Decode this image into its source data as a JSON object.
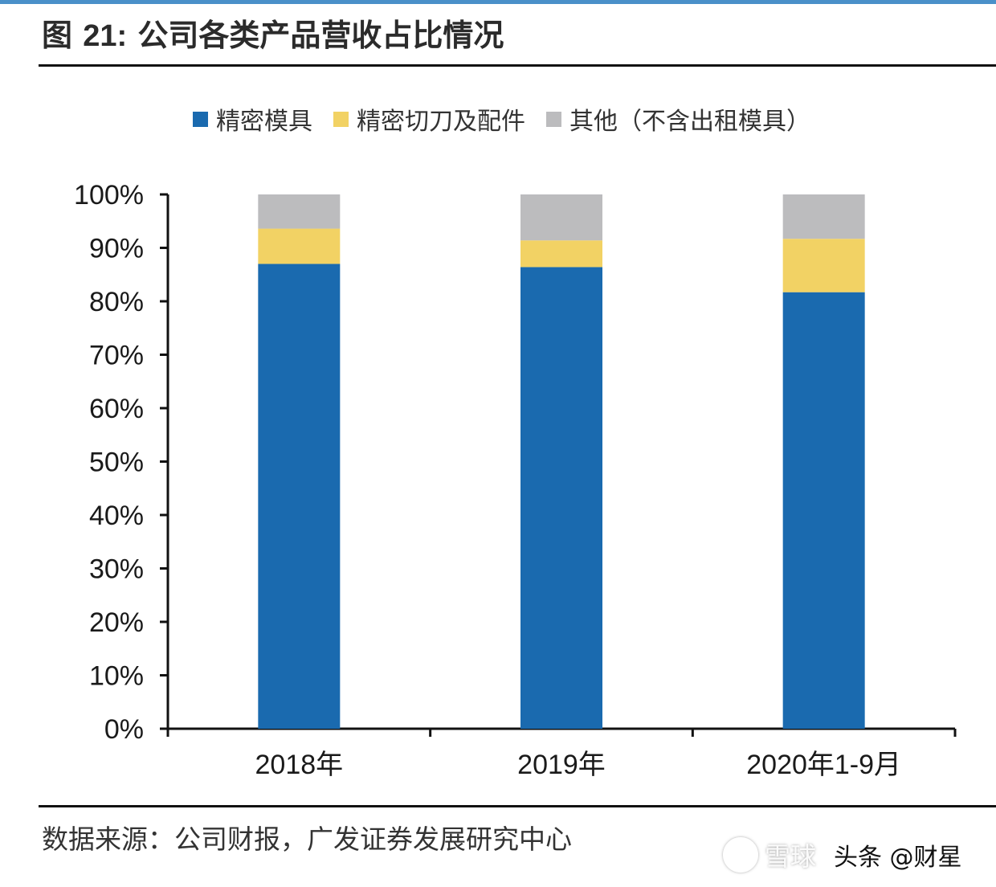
{
  "figure": {
    "label": "图",
    "number": "21:",
    "title": "公司各类产品营收占比情况"
  },
  "source": "数据来源：公司财报，广发证券发展研究中心",
  "watermark": {
    "primary": "雪球",
    "secondary": "头条 @财星"
  },
  "colors": {
    "precision_mold": "#1a6aaf",
    "cutter_parts": "#f2d264",
    "other": "#bcbcbe",
    "accent_rule": "#4a90c9"
  },
  "chart_data": {
    "type": "bar",
    "stacked": true,
    "categories": [
      "2018年",
      "2019年",
      "2020年1-9月"
    ],
    "series": [
      {
        "name": "精密模具",
        "values": [
          87.0,
          86.4,
          81.7
        ],
        "color": "#1a6aaf"
      },
      {
        "name": "精密切刀及配件",
        "values": [
          6.6,
          5.0,
          10.0
        ],
        "color": "#f2d264"
      },
      {
        "name": "其他（不含出租模具）",
        "values": [
          6.4,
          8.6,
          8.3
        ],
        "color": "#bcbcbe"
      }
    ],
    "ylim": [
      0,
      100
    ],
    "yticks": [
      "0%",
      "10%",
      "20%",
      "30%",
      "40%",
      "50%",
      "60%",
      "70%",
      "80%",
      "90%",
      "100%"
    ],
    "ytick_values": [
      0,
      10,
      20,
      30,
      40,
      50,
      60,
      70,
      80,
      90,
      100
    ],
    "grid": false,
    "legend_position": "top"
  }
}
